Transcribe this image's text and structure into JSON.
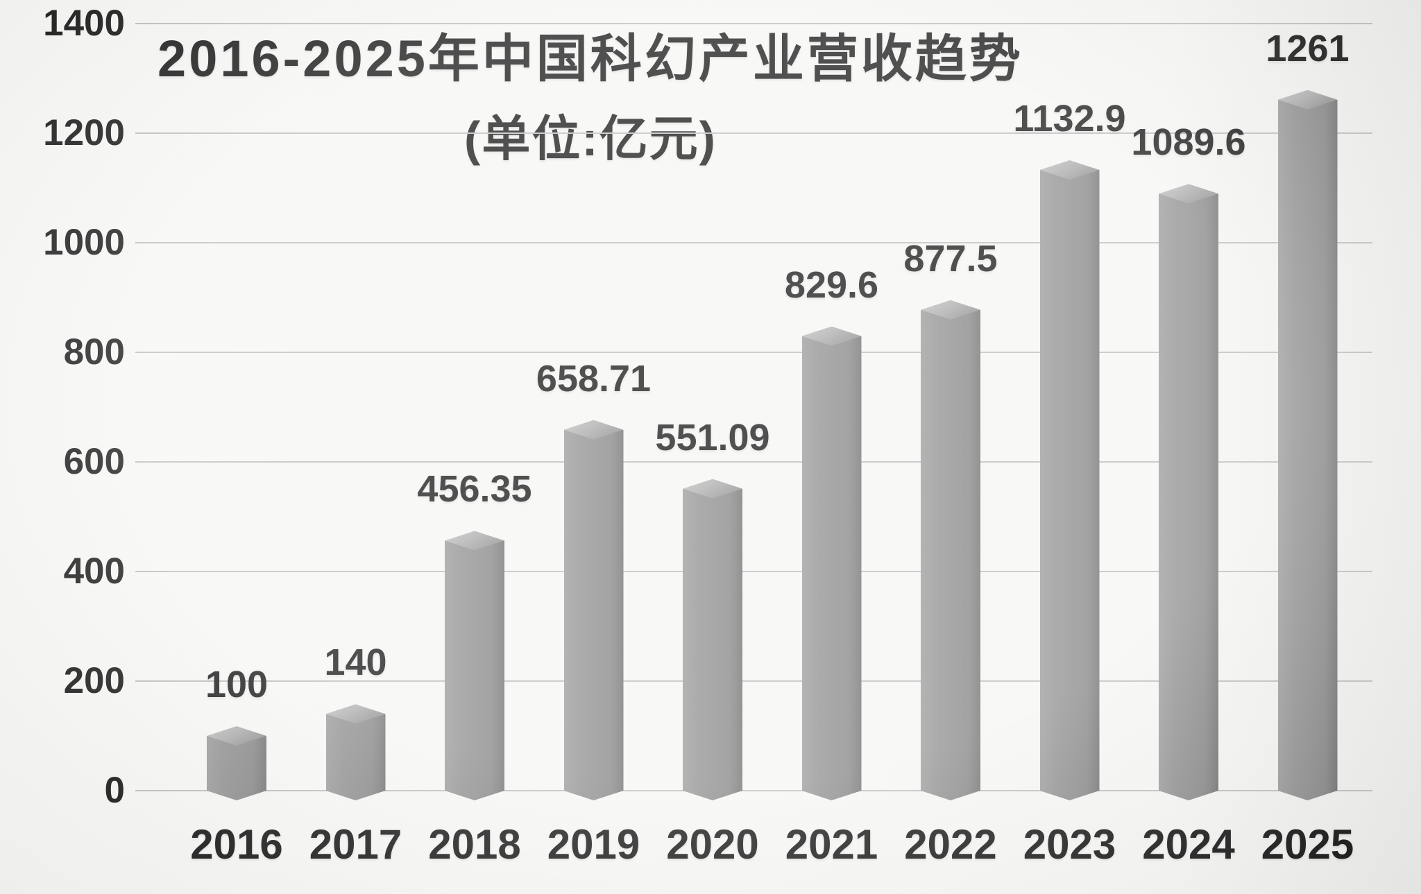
{
  "page": {
    "background_color": "#f5f5f3",
    "text_color": "#151515",
    "gridline_color": "#bdbdbd",
    "bar_color": "#8a8a8a",
    "bar_cap_color": "#a8a8a8"
  },
  "chart_data": {
    "type": "bar",
    "title": "2016-2025年中国科幻产业营收趋势",
    "subtitle": "(单位:亿元)",
    "unit": "亿元",
    "categories": [
      "2016",
      "2017",
      "2018",
      "2019",
      "2020",
      "2021",
      "2022",
      "2023",
      "2024",
      "2025"
    ],
    "values": [
      100,
      140,
      456.35,
      658.71,
      551.09,
      829.6,
      877.5,
      1132.9,
      1089.6,
      1261
    ],
    "data_labels": [
      "100",
      "140",
      "456.35",
      "658.71",
      "551.09",
      "829.6",
      "877.5",
      "1132.9",
      "1089.6",
      "1261"
    ],
    "xlabel": "",
    "ylabel": "",
    "ylim": [
      0,
      1400
    ],
    "y_ticks": [
      0,
      200,
      400,
      600,
      800,
      1000,
      1200,
      1400
    ],
    "grid": true,
    "legend": false,
    "style": "3d-gray-columns"
  }
}
